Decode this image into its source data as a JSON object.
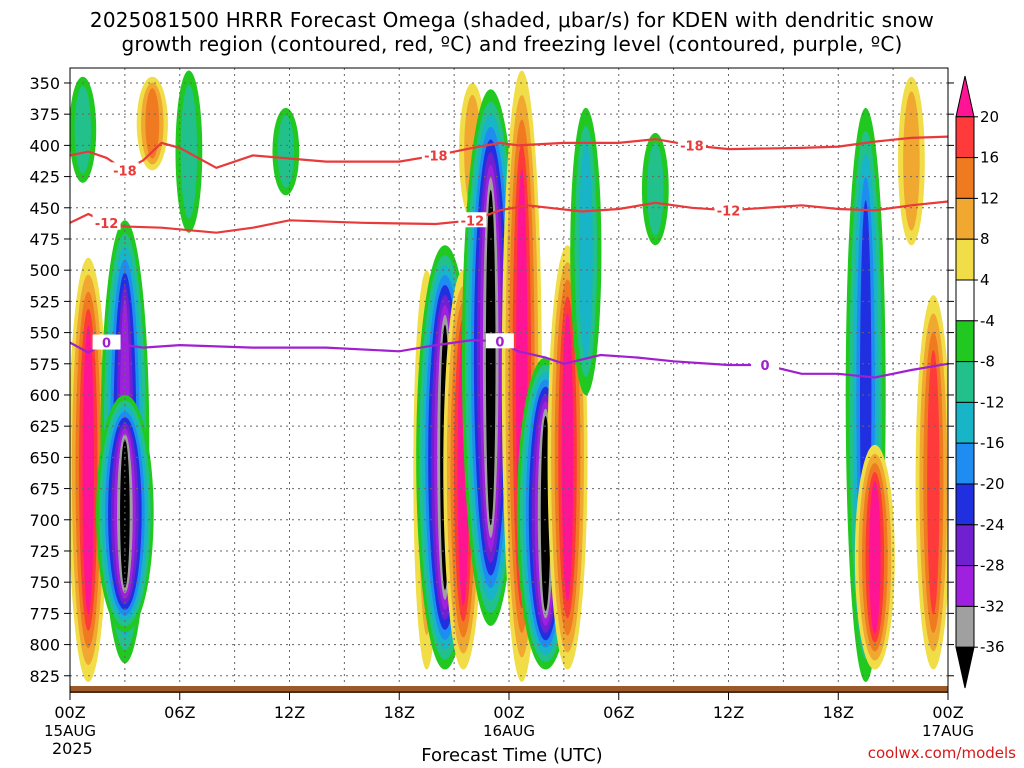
{
  "title": {
    "line1": "2025081500 HRRR Forecast Omega (shaded, μbar/s) for KDEN with dendritic snow",
    "line2": "growth region (contoured, red, ºC) and freezing level (contoured, purple, ºC)"
  },
  "credit": "coolwx.com/models",
  "chart_data": {
    "type": "heatmap",
    "title": "2025081500 HRRR Forecast Omega (shaded, μbar/s) for KDEN with dendritic snow growth region (contoured, red, ºC) and freezing level (contoured, purple, ºC)",
    "xlabel": "Forecast Time (UTC)",
    "ylabel": "",
    "x_range_hours": [
      0,
      48
    ],
    "x_ticks": [
      {
        "hour": 0,
        "label": "00Z",
        "sub": "15AUG",
        "sub2": "2025"
      },
      {
        "hour": 6,
        "label": "06Z"
      },
      {
        "hour": 12,
        "label": "12Z"
      },
      {
        "hour": 18,
        "label": "18Z"
      },
      {
        "hour": 24,
        "label": "00Z",
        "sub": "16AUG"
      },
      {
        "hour": 30,
        "label": "06Z"
      },
      {
        "hour": 36,
        "label": "12Z"
      },
      {
        "hour": 42,
        "label": "18Z"
      },
      {
        "hour": 48,
        "label": "00Z",
        "sub": "17AUG"
      }
    ],
    "y_range_mb": [
      338,
      838
    ],
    "y_ticks": [
      350,
      375,
      400,
      425,
      450,
      475,
      500,
      525,
      550,
      575,
      600,
      625,
      650,
      675,
      700,
      725,
      750,
      775,
      800,
      825
    ],
    "grid": true,
    "colorbar": {
      "labels": [
        20,
        16,
        12,
        8,
        4,
        -4,
        -8,
        -12,
        -16,
        -20,
        -24,
        -28,
        -32,
        -36
      ],
      "colors": [
        "#ff1493",
        "#ff3a3a",
        "#f07a20",
        "#f0a830",
        "#f0dd48",
        "#ffffff",
        "#20c820",
        "#22c08a",
        "#18b4c8",
        "#1e8cf0",
        "#2030e0",
        "#7020d0",
        "#a020e0",
        "#a0a0a0",
        "#000000"
      ]
    },
    "omega_features": [
      {
        "hour": 0.7,
        "p_top": 345,
        "p_bot": 430,
        "value": -10
      },
      {
        "hour": 1.0,
        "p_top": 490,
        "p_bot": 830,
        "value": 20
      },
      {
        "hour": 3.0,
        "p_top": 460,
        "p_bot": 815,
        "value": -28
      },
      {
        "hour": 3.0,
        "p_top": 600,
        "p_bot": 790,
        "value": -36
      },
      {
        "hour": 4.5,
        "p_top": 345,
        "p_bot": 420,
        "value": 12
      },
      {
        "hour": 6.5,
        "p_top": 340,
        "p_bot": 470,
        "value": -8
      },
      {
        "hour": 11.8,
        "p_top": 370,
        "p_bot": 440,
        "value": -8
      },
      {
        "hour": 19.5,
        "p_top": 500,
        "p_bot": 820,
        "value": 8
      },
      {
        "hour": 20.5,
        "p_top": 480,
        "p_bot": 820,
        "value": -36
      },
      {
        "hour": 21.5,
        "p_top": 500,
        "p_bot": 820,
        "value": 20
      },
      {
        "hour": 22.0,
        "p_top": 350,
        "p_bot": 460,
        "value": 8
      },
      {
        "hour": 23.0,
        "p_top": 355,
        "p_bot": 785,
        "value": -36
      },
      {
        "hour": 24.7,
        "p_top": 340,
        "p_bot": 830,
        "value": 20
      },
      {
        "hour": 26.0,
        "p_top": 570,
        "p_bot": 820,
        "value": -36
      },
      {
        "hour": 27.2,
        "p_top": 480,
        "p_bot": 820,
        "value": 20
      },
      {
        "hour": 28.2,
        "p_top": 370,
        "p_bot": 600,
        "value": -12
      },
      {
        "hour": 32.0,
        "p_top": 390,
        "p_bot": 480,
        "value": -8
      },
      {
        "hour": 43.5,
        "p_top": 370,
        "p_bot": 830,
        "value": -20
      },
      {
        "hour": 44.0,
        "p_top": 640,
        "p_bot": 820,
        "value": 20
      },
      {
        "hour": 46.0,
        "p_top": 345,
        "p_bot": 480,
        "value": 8
      },
      {
        "hour": 47.2,
        "p_top": 520,
        "p_bot": 820,
        "value": 16
      }
    ],
    "contours": [
      {
        "label": "-18",
        "color": "#e83a3a",
        "points": [
          [
            0,
            408
          ],
          [
            1,
            405
          ],
          [
            2,
            410
          ],
          [
            3,
            420
          ],
          [
            4,
            412
          ],
          [
            5,
            398
          ],
          [
            6,
            402
          ],
          [
            8,
            418
          ],
          [
            10,
            408
          ],
          [
            14,
            413
          ],
          [
            18,
            413
          ],
          [
            20,
            408
          ],
          [
            22,
            402
          ],
          [
            23.5,
            398
          ],
          [
            24.5,
            400
          ],
          [
            27,
            398
          ],
          [
            30,
            398
          ],
          [
            32,
            395
          ],
          [
            34,
            400
          ],
          [
            36,
            403
          ],
          [
            40,
            402
          ],
          [
            42,
            401
          ],
          [
            44,
            397
          ],
          [
            46,
            394
          ],
          [
            48,
            393
          ]
        ]
      },
      {
        "label": "-12",
        "color": "#e83a3a",
        "points": [
          [
            0,
            462
          ],
          [
            1,
            455
          ],
          [
            2,
            462
          ],
          [
            3,
            465
          ],
          [
            5,
            466
          ],
          [
            8,
            470
          ],
          [
            10,
            466
          ],
          [
            12,
            460
          ],
          [
            16,
            462
          ],
          [
            20,
            463
          ],
          [
            22,
            460
          ],
          [
            23.5,
            452
          ],
          [
            25,
            448
          ],
          [
            28,
            453
          ],
          [
            30,
            451
          ],
          [
            32,
            446
          ],
          [
            34,
            450
          ],
          [
            36,
            452
          ],
          [
            40,
            448
          ],
          [
            42,
            451
          ],
          [
            44,
            452
          ],
          [
            46,
            448
          ],
          [
            48,
            445
          ]
        ]
      },
      {
        "label": "0",
        "color": "#a020d0",
        "points": [
          [
            0,
            558
          ],
          [
            1,
            566
          ],
          [
            2,
            558
          ],
          [
            4,
            562
          ],
          [
            6,
            560
          ],
          [
            10,
            562
          ],
          [
            14,
            562
          ],
          [
            18,
            565
          ],
          [
            20,
            560
          ],
          [
            22,
            556
          ],
          [
            23.5,
            557
          ],
          [
            24.5,
            565
          ],
          [
            26,
            570
          ],
          [
            27,
            575
          ],
          [
            29,
            568
          ],
          [
            31,
            570
          ],
          [
            33,
            573
          ],
          [
            36,
            576
          ],
          [
            38,
            576
          ],
          [
            40,
            583
          ],
          [
            42,
            583
          ],
          [
            44,
            586
          ],
          [
            46,
            580
          ],
          [
            48,
            575
          ]
        ]
      }
    ]
  }
}
